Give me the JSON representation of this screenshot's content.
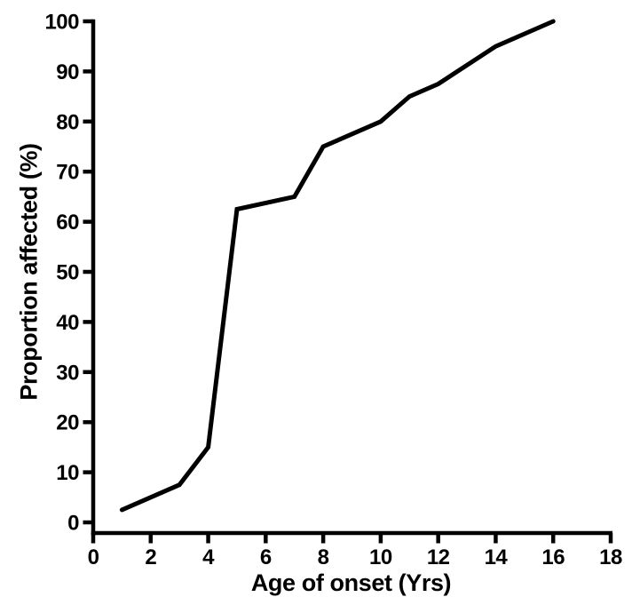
{
  "figure": {
    "background_color": "#ffffff",
    "line_color": "#000000",
    "text_color": "#000000"
  },
  "chart_data": {
    "type": "line",
    "title": "",
    "xlabel": "Age of onset (Yrs)",
    "ylabel": "Proportion affected (%)",
    "xlim": [
      0,
      18
    ],
    "ylim": [
      0,
      100
    ],
    "xticks": [
      0,
      2,
      4,
      6,
      8,
      10,
      12,
      14,
      16,
      18
    ],
    "yticks": [
      0,
      10,
      20,
      30,
      40,
      50,
      60,
      70,
      80,
      90,
      100
    ],
    "grid": false,
    "legend": "none",
    "series": [
      {
        "x": [
          1,
          3,
          4,
          5,
          7,
          8,
          10,
          11,
          12,
          14,
          16
        ],
        "y": [
          2.5,
          7.5,
          15,
          62.5,
          65,
          75,
          80,
          85,
          87.5,
          95,
          100
        ]
      }
    ]
  }
}
